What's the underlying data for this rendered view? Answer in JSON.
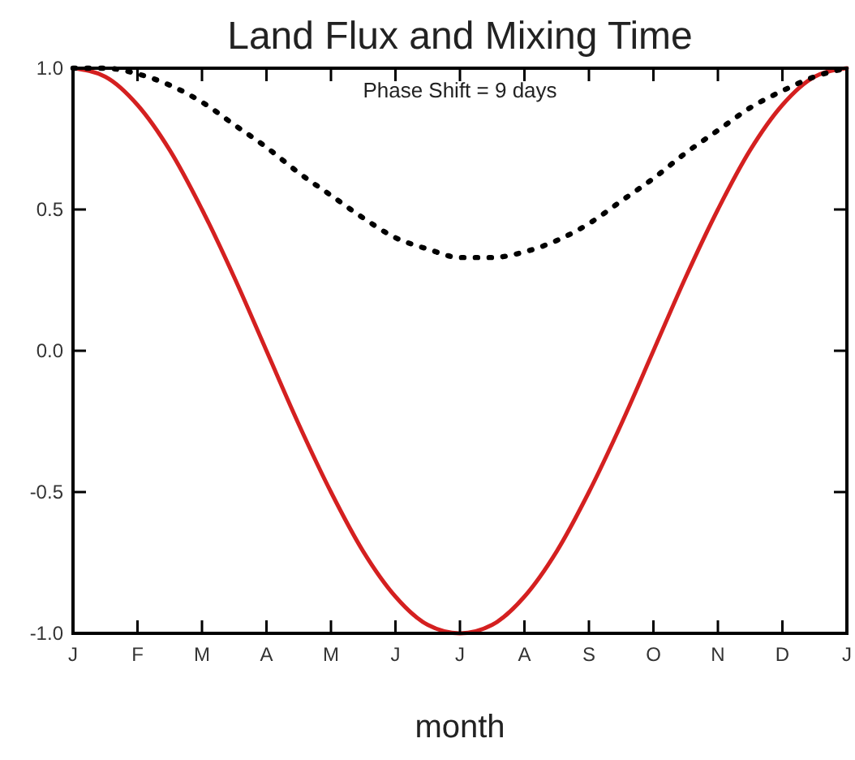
{
  "chart_data": {
    "type": "line",
    "title": "Land Flux and Mixing Time",
    "xlabel": "month",
    "annotations": [
      "Phase Shift = 9 days"
    ],
    "categories": [
      "J",
      null,
      "F",
      null,
      "M",
      null,
      "A",
      null,
      "M",
      null,
      "J",
      null,
      "J",
      null,
      "A",
      null,
      "S",
      null,
      "O",
      null,
      "N",
      null,
      "D",
      null,
      "J"
    ],
    "ylim": [
      -1,
      1
    ],
    "yticks": [
      {
        "value": -1,
        "label": "-1.0"
      },
      {
        "value": -0.5,
        "label": "-0.5"
      },
      {
        "value": 0,
        "label": "0.0"
      },
      {
        "value": 0.5,
        "label": "0.5"
      },
      {
        "value": 1,
        "label": "1.0"
      }
    ],
    "grid": false,
    "marker": "none",
    "series": [
      {
        "color": "#d42020",
        "line_style": "solid",
        "values": [
          1,
          0.97,
          0.87,
          0.71,
          0.5,
          0.26,
          0,
          -0.26,
          -0.5,
          -0.71,
          -0.87,
          -0.97,
          -1,
          -0.97,
          -0.87,
          -0.71,
          -0.5,
          -0.26,
          0,
          0.26,
          0.5,
          0.71,
          0.87,
          0.97,
          1
        ]
      },
      {
        "color": "#000000",
        "line_style": "dotted",
        "values": [
          1,
          1,
          0.98,
          0.94,
          0.88,
          0.8,
          0.72,
          0.63,
          0.55,
          0.47,
          0.4,
          0.36,
          0.33,
          0.33,
          0.35,
          0.39,
          0.45,
          0.53,
          0.61,
          0.7,
          0.78,
          0.86,
          0.92,
          0.97,
          1
        ]
      }
    ]
  }
}
